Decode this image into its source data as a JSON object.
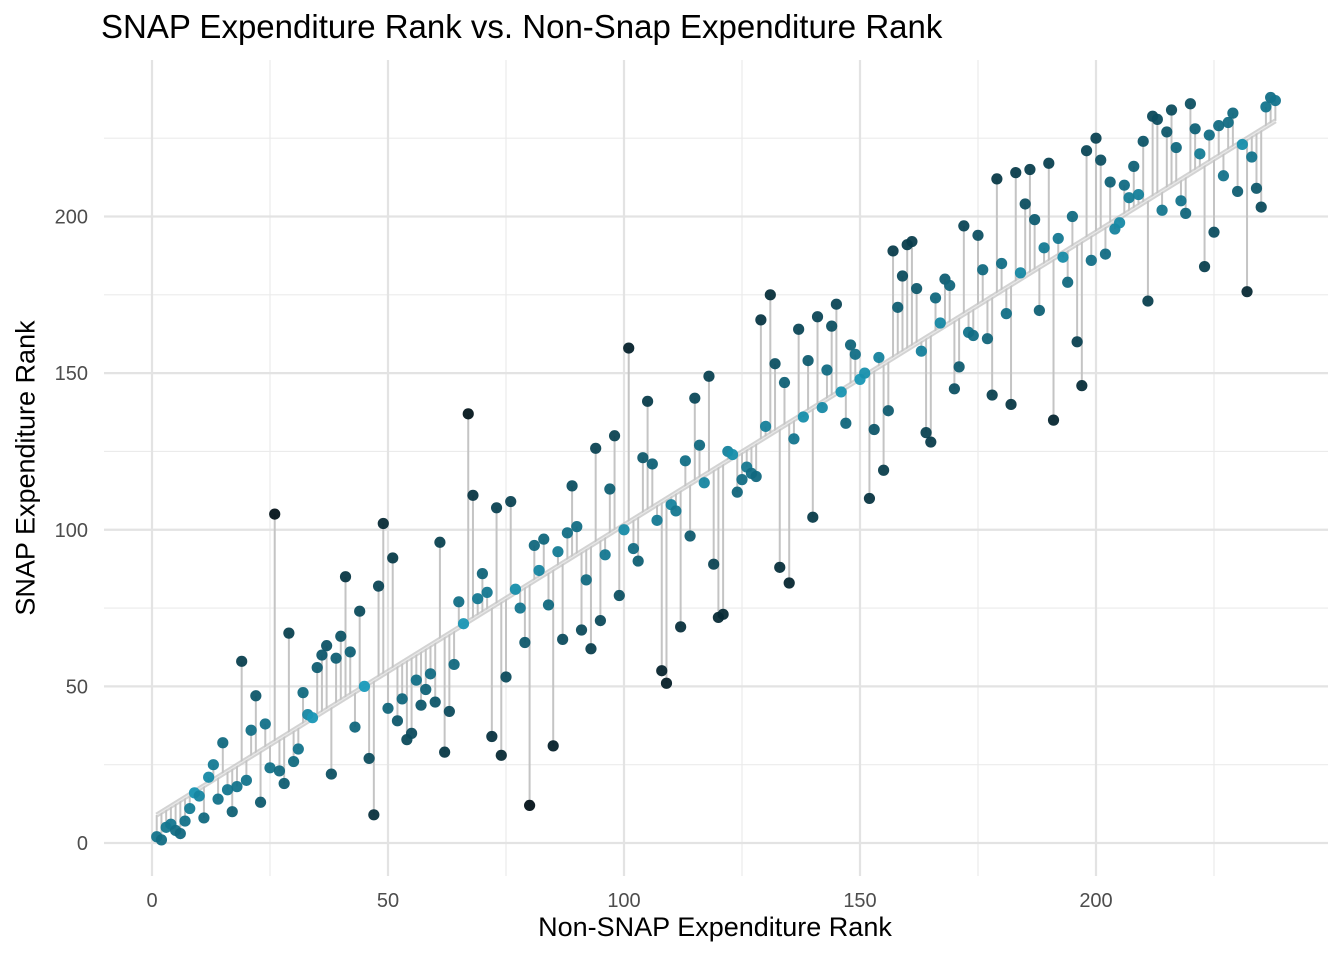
{
  "chart_data": {
    "type": "scatter",
    "title": "SNAP Expenditure Rank vs. Non-Snap Expenditure Rank",
    "xlabel": "Non-SNAP Expenditure Rank",
    "ylabel": "SNAP Expenditure Rank",
    "xlim": [
      -10,
      250
    ],
    "ylim": [
      -10,
      250
    ],
    "x_ticks": [
      0,
      50,
      100,
      150,
      200
    ],
    "y_ticks": [
      0,
      50,
      100,
      150,
      200
    ],
    "grid": true,
    "fit_line": {
      "intercept": 8,
      "slope": 0.935,
      "color": "#c4c4c4"
    },
    "colors": {
      "low": "#1a9fbf",
      "high": "#04131a"
    },
    "points": [
      [
        1,
        2
      ],
      [
        2,
        1
      ],
      [
        3,
        5
      ],
      [
        4,
        6
      ],
      [
        5,
        4
      ],
      [
        6,
        3
      ],
      [
        7,
        7
      ],
      [
        8,
        11
      ],
      [
        9,
        16
      ],
      [
        10,
        15
      ],
      [
        11,
        8
      ],
      [
        12,
        21
      ],
      [
        13,
        25
      ],
      [
        14,
        14
      ],
      [
        15,
        32
      ],
      [
        16,
        17
      ],
      [
        17,
        10
      ],
      [
        18,
        18
      ],
      [
        19,
        58
      ],
      [
        20,
        20
      ],
      [
        21,
        36
      ],
      [
        22,
        47
      ],
      [
        23,
        13
      ],
      [
        24,
        38
      ],
      [
        25,
        24
      ],
      [
        26,
        105
      ],
      [
        27,
        23
      ],
      [
        28,
        19
      ],
      [
        29,
        67
      ],
      [
        30,
        26
      ],
      [
        31,
        30
      ],
      [
        32,
        48
      ],
      [
        33,
        41
      ],
      [
        34,
        40
      ],
      [
        35,
        56
      ],
      [
        36,
        60
      ],
      [
        37,
        63
      ],
      [
        38,
        22
      ],
      [
        39,
        59
      ],
      [
        40,
        66
      ],
      [
        41,
        85
      ],
      [
        42,
        61
      ],
      [
        43,
        37
      ],
      [
        44,
        74
      ],
      [
        45,
        50
      ],
      [
        46,
        27
      ],
      [
        47,
        9
      ],
      [
        48,
        82
      ],
      [
        49,
        102
      ],
      [
        50,
        43
      ],
      [
        51,
        91
      ],
      [
        52,
        39
      ],
      [
        53,
        46
      ],
      [
        54,
        33
      ],
      [
        55,
        35
      ],
      [
        56,
        52
      ],
      [
        57,
        44
      ],
      [
        58,
        49
      ],
      [
        59,
        54
      ],
      [
        60,
        45
      ],
      [
        61,
        96
      ],
      [
        62,
        29
      ],
      [
        63,
        42
      ],
      [
        64,
        57
      ],
      [
        65,
        77
      ],
      [
        66,
        70
      ],
      [
        67,
        137
      ],
      [
        68,
        111
      ],
      [
        69,
        78
      ],
      [
        70,
        86
      ],
      [
        71,
        80
      ],
      [
        72,
        34
      ],
      [
        73,
        107
      ],
      [
        74,
        28
      ],
      [
        75,
        53
      ],
      [
        76,
        109
      ],
      [
        77,
        81
      ],
      [
        78,
        75
      ],
      [
        79,
        64
      ],
      [
        80,
        12
      ],
      [
        81,
        95
      ],
      [
        82,
        87
      ],
      [
        83,
        97
      ],
      [
        84,
        76
      ],
      [
        85,
        31
      ],
      [
        86,
        93
      ],
      [
        87,
        65
      ],
      [
        88,
        99
      ],
      [
        89,
        114
      ],
      [
        90,
        101
      ],
      [
        91,
        68
      ],
      [
        92,
        84
      ],
      [
        93,
        62
      ],
      [
        94,
        126
      ],
      [
        95,
        71
      ],
      [
        96,
        92
      ],
      [
        97,
        113
      ],
      [
        98,
        130
      ],
      [
        99,
        79
      ],
      [
        100,
        100
      ],
      [
        101,
        158
      ],
      [
        102,
        94
      ],
      [
        103,
        90
      ],
      [
        104,
        123
      ],
      [
        105,
        141
      ],
      [
        106,
        121
      ],
      [
        107,
        103
      ],
      [
        108,
        55
      ],
      [
        109,
        51
      ],
      [
        110,
        108
      ],
      [
        111,
        106
      ],
      [
        112,
        69
      ],
      [
        113,
        122
      ],
      [
        114,
        98
      ],
      [
        115,
        142
      ],
      [
        116,
        127
      ],
      [
        117,
        115
      ],
      [
        118,
        149
      ],
      [
        119,
        89
      ],
      [
        120,
        72
      ],
      [
        121,
        73
      ],
      [
        122,
        125
      ],
      [
        123,
        124
      ],
      [
        124,
        112
      ],
      [
        125,
        116
      ],
      [
        126,
        120
      ],
      [
        127,
        118
      ],
      [
        128,
        117
      ],
      [
        129,
        167
      ],
      [
        130,
        133
      ],
      [
        131,
        175
      ],
      [
        132,
        153
      ],
      [
        133,
        88
      ],
      [
        134,
        147
      ],
      [
        135,
        83
      ],
      [
        136,
        129
      ],
      [
        137,
        164
      ],
      [
        138,
        136
      ],
      [
        139,
        154
      ],
      [
        140,
        104
      ],
      [
        141,
        168
      ],
      [
        142,
        139
      ],
      [
        143,
        151
      ],
      [
        144,
        165
      ],
      [
        145,
        172
      ],
      [
        146,
        144
      ],
      [
        147,
        134
      ],
      [
        148,
        159
      ],
      [
        149,
        156
      ],
      [
        150,
        148
      ],
      [
        151,
        150
      ],
      [
        152,
        110
      ],
      [
        153,
        132
      ],
      [
        154,
        155
      ],
      [
        155,
        119
      ],
      [
        156,
        138
      ],
      [
        157,
        189
      ],
      [
        158,
        171
      ],
      [
        159,
        181
      ],
      [
        160,
        191
      ],
      [
        161,
        192
      ],
      [
        162,
        177
      ],
      [
        163,
        157
      ],
      [
        164,
        131
      ],
      [
        165,
        128
      ],
      [
        166,
        174
      ],
      [
        167,
        166
      ],
      [
        168,
        180
      ],
      [
        169,
        178
      ],
      [
        170,
        145
      ],
      [
        171,
        152
      ],
      [
        172,
        197
      ],
      [
        173,
        163
      ],
      [
        174,
        162
      ],
      [
        175,
        194
      ],
      [
        176,
        183
      ],
      [
        177,
        161
      ],
      [
        178,
        143
      ],
      [
        179,
        212
      ],
      [
        180,
        185
      ],
      [
        181,
        169
      ],
      [
        182,
        140
      ],
      [
        183,
        214
      ],
      [
        184,
        182
      ],
      [
        185,
        204
      ],
      [
        186,
        215
      ],
      [
        187,
        199
      ],
      [
        188,
        170
      ],
      [
        189,
        190
      ],
      [
        190,
        217
      ],
      [
        191,
        135
      ],
      [
        192,
        193
      ],
      [
        193,
        187
      ],
      [
        194,
        179
      ],
      [
        195,
        200
      ],
      [
        196,
        160
      ],
      [
        197,
        146
      ],
      [
        198,
        221
      ],
      [
        199,
        186
      ],
      [
        200,
        225
      ],
      [
        201,
        218
      ],
      [
        202,
        188
      ],
      [
        203,
        211
      ],
      [
        204,
        196
      ],
      [
        205,
        198
      ],
      [
        206,
        210
      ],
      [
        207,
        206
      ],
      [
        208,
        216
      ],
      [
        209,
        207
      ],
      [
        210,
        224
      ],
      [
        211,
        173
      ],
      [
        212,
        232
      ],
      [
        213,
        231
      ],
      [
        214,
        202
      ],
      [
        215,
        227
      ],
      [
        216,
        234
      ],
      [
        217,
        222
      ],
      [
        218,
        205
      ],
      [
        219,
        201
      ],
      [
        220,
        236
      ],
      [
        221,
        228
      ],
      [
        222,
        220
      ],
      [
        223,
        184
      ],
      [
        224,
        226
      ],
      [
        225,
        195
      ],
      [
        226,
        229
      ],
      [
        227,
        213
      ],
      [
        228,
        230
      ],
      [
        229,
        233
      ],
      [
        230,
        208
      ],
      [
        231,
        223
      ],
      [
        232,
        176
      ],
      [
        233,
        219
      ],
      [
        234,
        209
      ],
      [
        235,
        203
      ],
      [
        236,
        235
      ],
      [
        237,
        238
      ],
      [
        238,
        237
      ]
    ]
  }
}
